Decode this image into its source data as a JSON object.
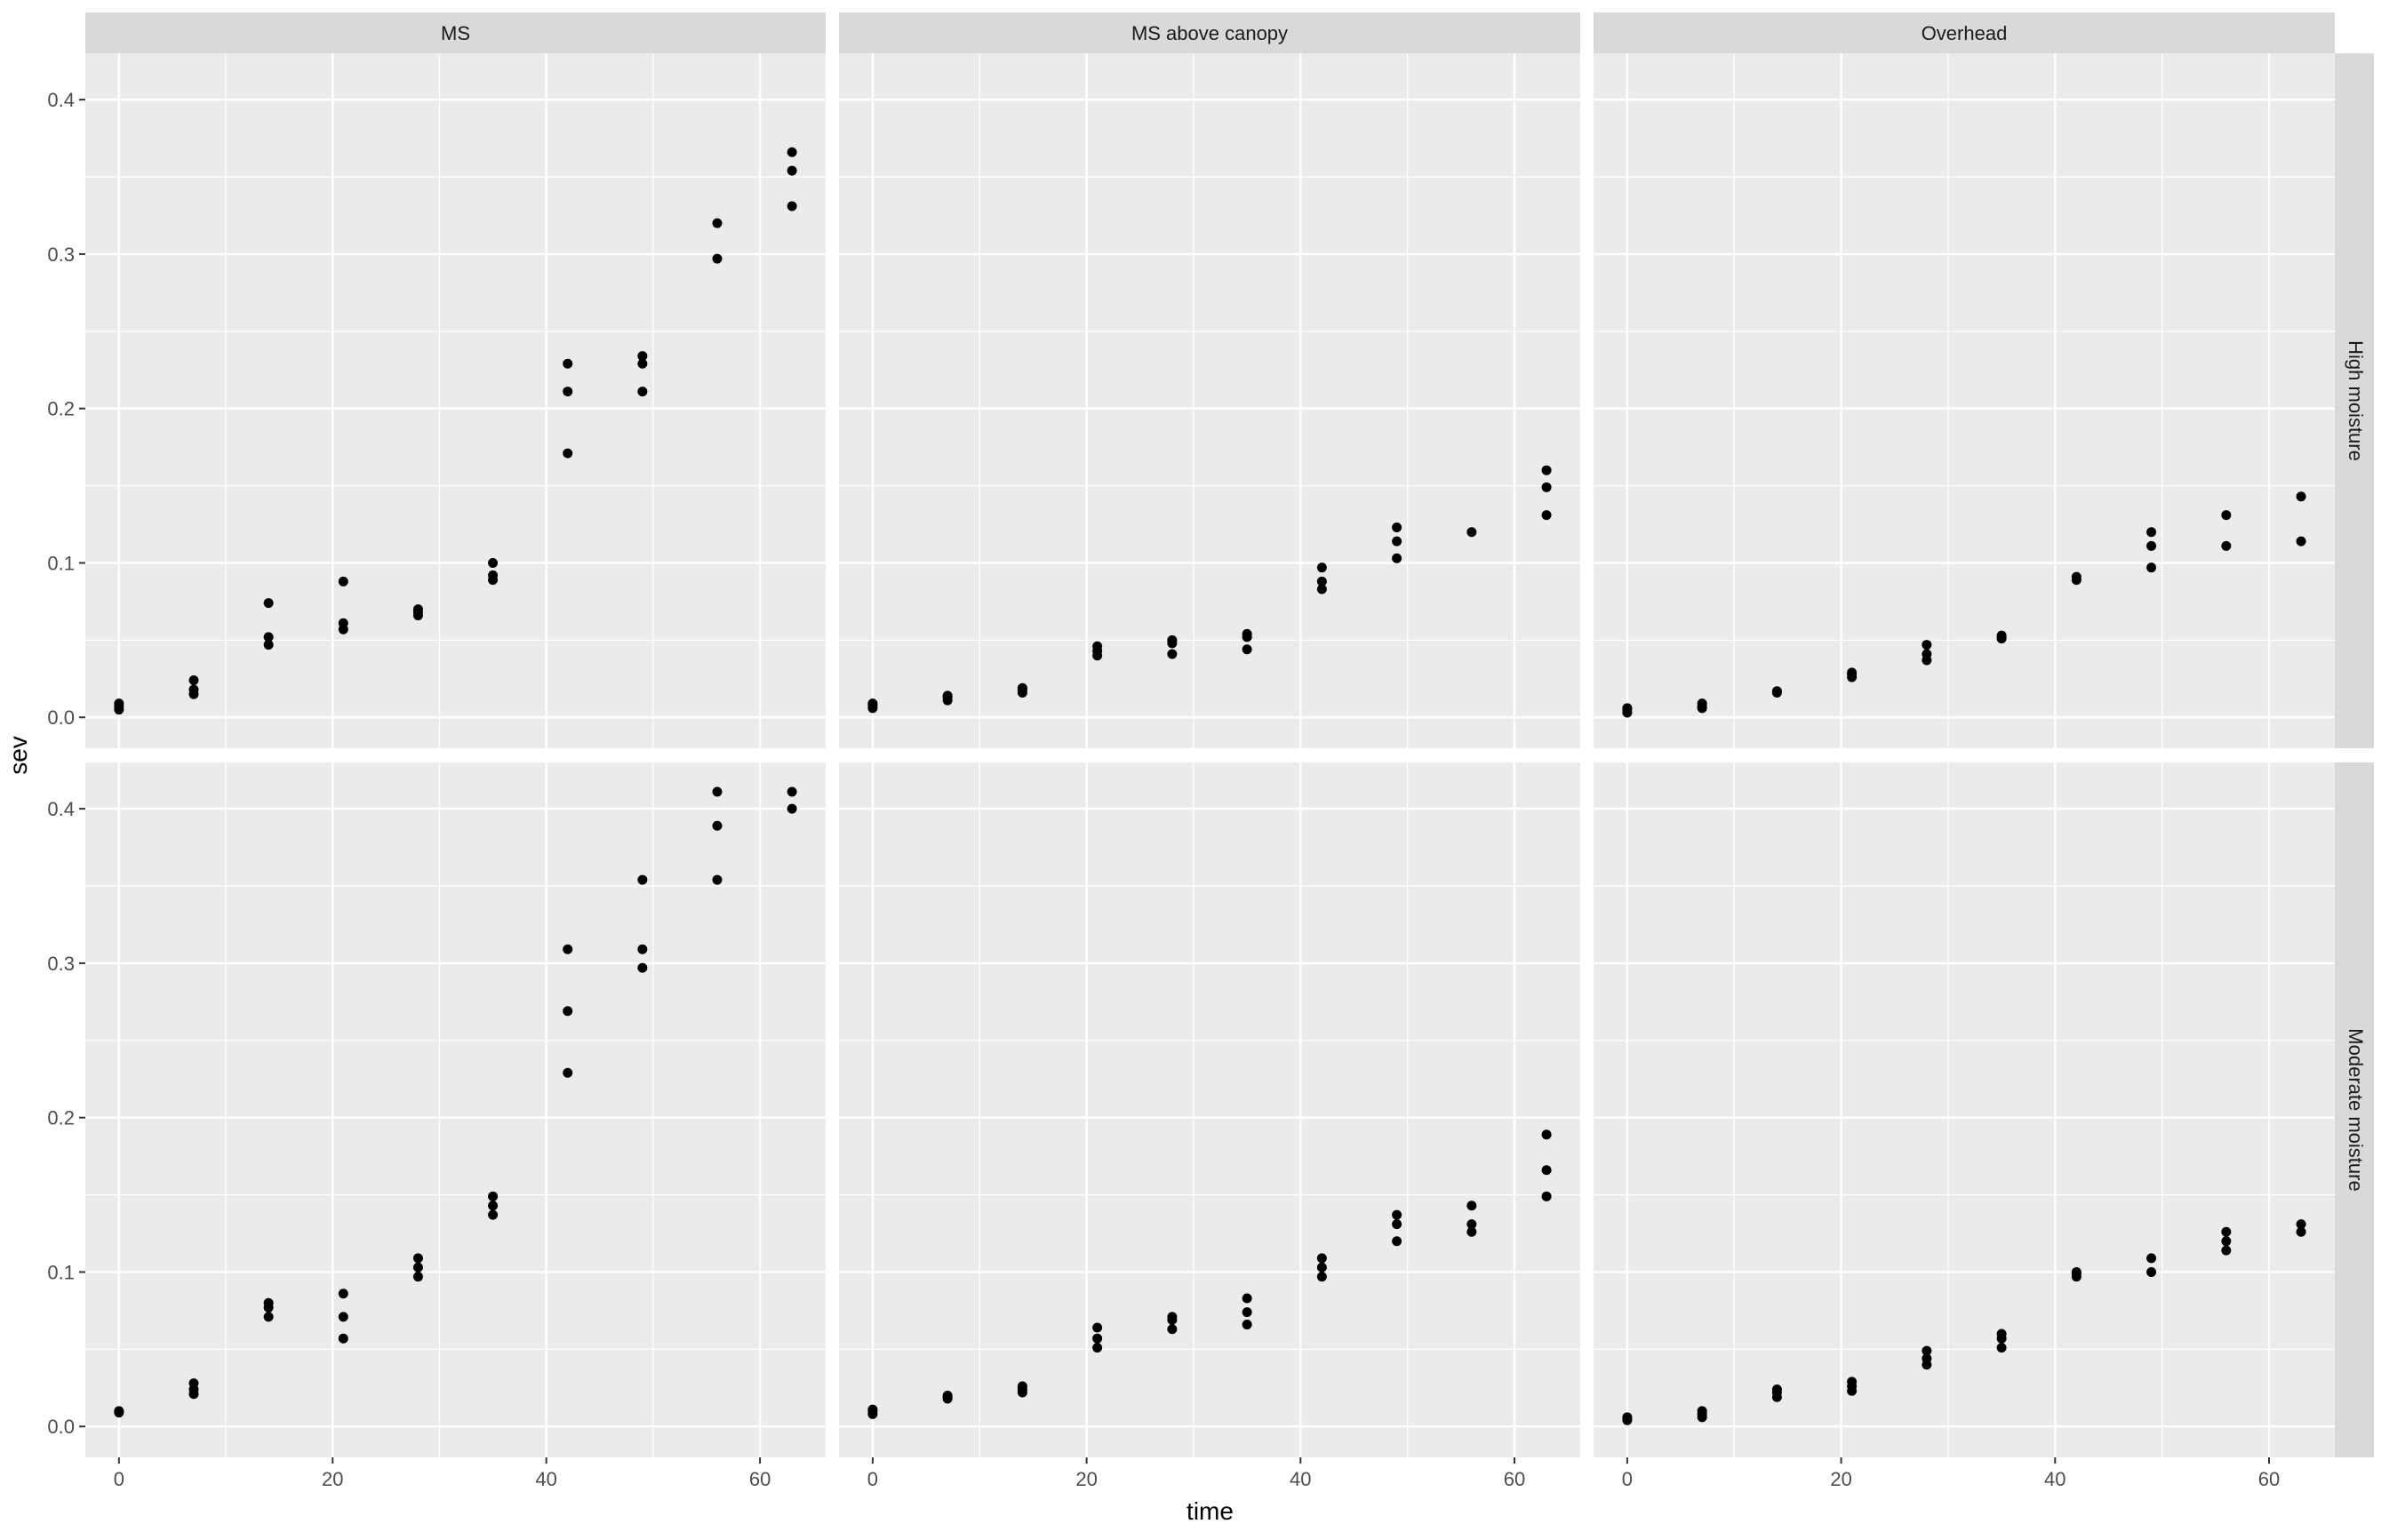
{
  "chart_data": {
    "type": "scatter",
    "xlabel": "time",
    "ylabel": "sev",
    "xlim": [
      -3.15,
      66.15
    ],
    "ylim": [
      -0.02,
      0.43
    ],
    "x_ticks": [
      0,
      20,
      40,
      60
    ],
    "y_ticks": [
      0.0,
      0.1,
      0.2,
      0.3,
      0.4
    ],
    "y_tick_labels": [
      "0.0",
      "0.1",
      "0.2",
      "0.3",
      "0.4"
    ],
    "grid": true,
    "legend": "none",
    "colors": {
      "panel_bg": "#ebebeb",
      "grid": "#ffffff",
      "strip_bg": "#d9d9d9",
      "point": "#000000"
    },
    "facet_columns": [
      "MS",
      "MS above canopy",
      "Overhead"
    ],
    "facet_rows": [
      "High moisture",
      "Moderate moisture"
    ],
    "panels": [
      {
        "col": "MS",
        "row": "High moisture",
        "points": [
          [
            0,
            0.005
          ],
          [
            0,
            0.007
          ],
          [
            0,
            0.009
          ],
          [
            7,
            0.015
          ],
          [
            7,
            0.018
          ],
          [
            7,
            0.024
          ],
          [
            14,
            0.047
          ],
          [
            14,
            0.052
          ],
          [
            14,
            0.074
          ],
          [
            21,
            0.057
          ],
          [
            21,
            0.061
          ],
          [
            21,
            0.088
          ],
          [
            28,
            0.066
          ],
          [
            28,
            0.068
          ],
          [
            28,
            0.07
          ],
          [
            35,
            0.089
          ],
          [
            35,
            0.092
          ],
          [
            35,
            0.1
          ],
          [
            42,
            0.171
          ],
          [
            42,
            0.211
          ],
          [
            42,
            0.229
          ],
          [
            49,
            0.211
          ],
          [
            49,
            0.229
          ],
          [
            49,
            0.234
          ],
          [
            56,
            0.297
          ],
          [
            56,
            0.32
          ],
          [
            63,
            0.331
          ],
          [
            63,
            0.354
          ],
          [
            63,
            0.366
          ]
        ]
      },
      {
        "col": "MS above canopy",
        "row": "High moisture",
        "points": [
          [
            0,
            0.006
          ],
          [
            0,
            0.008
          ],
          [
            0,
            0.009
          ],
          [
            7,
            0.011
          ],
          [
            7,
            0.013
          ],
          [
            7,
            0.014
          ],
          [
            14,
            0.016
          ],
          [
            14,
            0.018
          ],
          [
            14,
            0.019
          ],
          [
            21,
            0.04
          ],
          [
            21,
            0.043
          ],
          [
            21,
            0.046
          ],
          [
            28,
            0.041
          ],
          [
            28,
            0.048
          ],
          [
            28,
            0.05
          ],
          [
            35,
            0.044
          ],
          [
            35,
            0.052
          ],
          [
            35,
            0.054
          ],
          [
            42,
            0.083
          ],
          [
            42,
            0.088
          ],
          [
            42,
            0.097
          ],
          [
            49,
            0.103
          ],
          [
            49,
            0.114
          ],
          [
            49,
            0.123
          ],
          [
            56,
            0.12
          ],
          [
            63,
            0.131
          ],
          [
            63,
            0.149
          ],
          [
            63,
            0.16
          ]
        ]
      },
      {
        "col": "Overhead",
        "row": "High moisture",
        "points": [
          [
            0,
            0.003
          ],
          [
            0,
            0.005
          ],
          [
            0,
            0.006
          ],
          [
            7,
            0.006
          ],
          [
            7,
            0.007
          ],
          [
            7,
            0.009
          ],
          [
            14,
            0.016
          ],
          [
            14,
            0.017
          ],
          [
            21,
            0.026
          ],
          [
            21,
            0.028
          ],
          [
            21,
            0.029
          ],
          [
            28,
            0.037
          ],
          [
            28,
            0.041
          ],
          [
            28,
            0.047
          ],
          [
            35,
            0.051
          ],
          [
            35,
            0.052
          ],
          [
            35,
            0.053
          ],
          [
            42,
            0.089
          ],
          [
            42,
            0.091
          ],
          [
            49,
            0.097
          ],
          [
            49,
            0.111
          ],
          [
            49,
            0.12
          ],
          [
            56,
            0.111
          ],
          [
            56,
            0.131
          ],
          [
            63,
            0.114
          ],
          [
            63,
            0.143
          ]
        ]
      },
      {
        "col": "MS",
        "row": "Moderate moisture",
        "points": [
          [
            0,
            0.009
          ],
          [
            0,
            0.01
          ],
          [
            7,
            0.021
          ],
          [
            7,
            0.024
          ],
          [
            7,
            0.028
          ],
          [
            14,
            0.071
          ],
          [
            14,
            0.077
          ],
          [
            14,
            0.08
          ],
          [
            21,
            0.057
          ],
          [
            21,
            0.071
          ],
          [
            21,
            0.086
          ],
          [
            28,
            0.097
          ],
          [
            28,
            0.103
          ],
          [
            28,
            0.109
          ],
          [
            35,
            0.137
          ],
          [
            35,
            0.143
          ],
          [
            35,
            0.149
          ],
          [
            42,
            0.229
          ],
          [
            42,
            0.269
          ],
          [
            42,
            0.309
          ],
          [
            49,
            0.297
          ],
          [
            49,
            0.309
          ],
          [
            49,
            0.354
          ],
          [
            56,
            0.354
          ],
          [
            56,
            0.389
          ],
          [
            56,
            0.411
          ],
          [
            63,
            0.4
          ],
          [
            63,
            0.411
          ]
        ]
      },
      {
        "col": "MS above canopy",
        "row": "Moderate moisture",
        "points": [
          [
            0,
            0.008
          ],
          [
            0,
            0.01
          ],
          [
            0,
            0.011
          ],
          [
            7,
            0.018
          ],
          [
            7,
            0.019
          ],
          [
            7,
            0.02
          ],
          [
            14,
            0.022
          ],
          [
            14,
            0.024
          ],
          [
            14,
            0.026
          ],
          [
            21,
            0.051
          ],
          [
            21,
            0.057
          ],
          [
            21,
            0.064
          ],
          [
            28,
            0.063
          ],
          [
            28,
            0.069
          ],
          [
            28,
            0.071
          ],
          [
            35,
            0.066
          ],
          [
            35,
            0.074
          ],
          [
            35,
            0.083
          ],
          [
            42,
            0.097
          ],
          [
            42,
            0.103
          ],
          [
            42,
            0.109
          ],
          [
            49,
            0.12
          ],
          [
            49,
            0.131
          ],
          [
            49,
            0.137
          ],
          [
            56,
            0.126
          ],
          [
            56,
            0.131
          ],
          [
            56,
            0.143
          ],
          [
            63,
            0.149
          ],
          [
            63,
            0.166
          ],
          [
            63,
            0.189
          ]
        ]
      },
      {
        "col": "Overhead",
        "row": "Moderate moisture",
        "points": [
          [
            0,
            0.004
          ],
          [
            0,
            0.005
          ],
          [
            0,
            0.006
          ],
          [
            7,
            0.006
          ],
          [
            7,
            0.008
          ],
          [
            7,
            0.01
          ],
          [
            14,
            0.019
          ],
          [
            14,
            0.022
          ],
          [
            14,
            0.024
          ],
          [
            21,
            0.023
          ],
          [
            21,
            0.026
          ],
          [
            21,
            0.029
          ],
          [
            28,
            0.04
          ],
          [
            28,
            0.044
          ],
          [
            28,
            0.049
          ],
          [
            35,
            0.051
          ],
          [
            35,
            0.057
          ],
          [
            35,
            0.06
          ],
          [
            42,
            0.097
          ],
          [
            42,
            0.099
          ],
          [
            42,
            0.1
          ],
          [
            49,
            0.1
          ],
          [
            49,
            0.109
          ],
          [
            56,
            0.114
          ],
          [
            56,
            0.12
          ],
          [
            56,
            0.126
          ],
          [
            63,
            0.126
          ],
          [
            63,
            0.131
          ]
        ]
      }
    ]
  }
}
